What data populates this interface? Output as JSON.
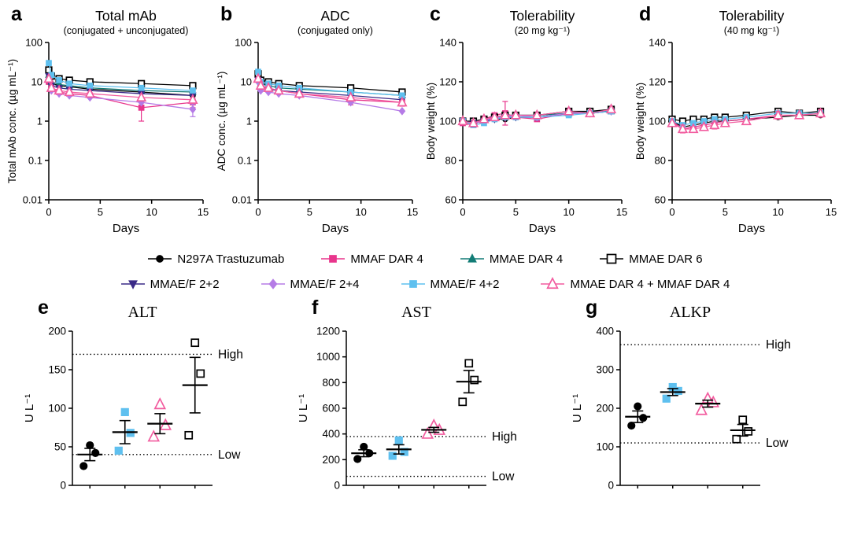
{
  "figure": {
    "background": "#ffffff"
  },
  "legend": {
    "rows": [
      [
        "N297A Trastuzumab",
        "MMAF DAR 4",
        "MMAE DAR 4",
        "MMAE DAR 6"
      ],
      [
        "MMAE/F 2+2",
        "MMAE/F 2+4",
        "MMAE/F 4+2",
        "MMAE DAR 4 + MMAF DAR 4"
      ]
    ]
  },
  "series_styles": {
    "N297A Trastuzumab": {
      "marker": "circle",
      "color": "#000000",
      "filled": true
    },
    "MMAF DAR 4": {
      "marker": "square",
      "color": "#E8358C",
      "filled": true
    },
    "MMAE DAR 4": {
      "marker": "triangle-up",
      "color": "#127C76",
      "filled": true
    },
    "MMAE DAR 6": {
      "marker": "square",
      "color": "#000000",
      "filled": false
    },
    "MMAE/F 2+2": {
      "marker": "triangle-down",
      "color": "#3A2A87",
      "filled": true
    },
    "MMAE/F 2+4": {
      "marker": "diamond",
      "color": "#B57BE6",
      "filled": true
    },
    "MMAE/F 4+2": {
      "marker": "square",
      "color": "#5FC0EF",
      "filled": true
    },
    "MMAE DAR 4 + MMAF DAR 4": {
      "marker": "triangle-up",
      "color": "#F25C9F",
      "filled": false
    }
  },
  "chart_data": [
    {
      "type": "line",
      "panel_letter": "a",
      "title": "Total mAb",
      "subtitle": "(conjugated + unconjugated)",
      "xlabel": "Days",
      "ylabel": "Total mAb conc. (µg mL⁻¹)",
      "xlim": [
        0,
        15
      ],
      "xticks": [
        0,
        5,
        10,
        15
      ],
      "yscale": "log",
      "ylim": [
        0.01,
        100
      ],
      "yticks": [
        0.01,
        0.1,
        1,
        10,
        100
      ],
      "x": [
        0,
        0.25,
        1,
        2,
        4,
        9,
        14
      ],
      "series": [
        {
          "name": "N297A Trastuzumab",
          "values": [
            13,
            9,
            8,
            7.5,
            6.5,
            5.5,
            4.5
          ]
        },
        {
          "name": "MMAF DAR 4",
          "values": [
            10,
            7,
            5.5,
            5,
            4.5,
            2.2,
            3
          ],
          "err": [
            0,
            0,
            0,
            0,
            0,
            1.2,
            0.8
          ]
        },
        {
          "name": "MMAE DAR 4",
          "values": [
            15,
            10,
            8.5,
            8,
            7,
            6,
            5.5
          ]
        },
        {
          "name": "MMAE DAR 6",
          "values": [
            20,
            14,
            12,
            11,
            10,
            9,
            8
          ]
        },
        {
          "name": "MMAE/F 2+2",
          "values": [
            14,
            8,
            7,
            6.5,
            6,
            5,
            4.5
          ]
        },
        {
          "name": "MMAE/F 2+4",
          "values": [
            12,
            6,
            5,
            4.5,
            4,
            3,
            2
          ],
          "err": [
            0,
            0,
            0,
            0,
            0,
            0,
            0.7
          ]
        },
        {
          "name": "MMAE/F 4+2",
          "values": [
            30,
            15,
            11,
            9,
            8,
            7,
            6
          ]
        },
        {
          "name": "MMAE DAR 4 + MMAF DAR 4",
          "values": [
            12,
            7,
            6,
            5.5,
            5,
            4,
            3.5
          ]
        }
      ]
    },
    {
      "type": "line",
      "panel_letter": "b",
      "title": "ADC",
      "subtitle": "(conjugated only)",
      "xlabel": "Days",
      "ylabel": "ADC conc. (µg mL⁻¹)",
      "xlim": [
        0,
        15
      ],
      "xticks": [
        0,
        5,
        10,
        15
      ],
      "yscale": "log",
      "ylim": [
        0.01,
        100
      ],
      "yticks": [
        0.01,
        0.1,
        1,
        10,
        100
      ],
      "x": [
        0,
        0.25,
        1,
        2,
        4,
        9,
        14
      ],
      "series": [
        {
          "name": "MMAF DAR 4",
          "values": [
            12,
            8,
            6.5,
            6,
            5,
            3.5,
            3
          ],
          "err": [
            0,
            0,
            0,
            0,
            0,
            0.9,
            0.6
          ]
        },
        {
          "name": "MMAE DAR 4",
          "values": [
            13,
            9,
            8,
            7,
            6.5,
            5.5,
            4.5
          ]
        },
        {
          "name": "MMAE DAR 6",
          "values": [
            16,
            11,
            10,
            9,
            8,
            7,
            5.5
          ]
        },
        {
          "name": "MMAE/F 2+2",
          "values": [
            11,
            7.5,
            6.5,
            6,
            5.5,
            4.5,
            3.5
          ]
        },
        {
          "name": "MMAE/F 2+4",
          "values": [
            10,
            6,
            5.5,
            5,
            4.5,
            3,
            1.8
          ]
        },
        {
          "name": "MMAE/F 4+2",
          "values": [
            18,
            10,
            9,
            8,
            7,
            5.5,
            4.5
          ]
        },
        {
          "name": "MMAE DAR 4 + MMAF DAR 4",
          "values": [
            12,
            8,
            7,
            6,
            5,
            4,
            3
          ]
        }
      ]
    },
    {
      "type": "line",
      "panel_letter": "c",
      "title": "Tolerability",
      "subtitle": "(20 mg kg⁻¹)",
      "xlabel": "Days",
      "ylabel": "Body weight (%)",
      "xlim": [
        0,
        15
      ],
      "xticks": [
        0,
        5,
        10,
        15
      ],
      "yscale": "linear",
      "ylim": [
        60,
        140
      ],
      "yticks": [
        60,
        80,
        100,
        120,
        140
      ],
      "x": [
        0,
        1,
        2,
        3,
        4,
        5,
        7,
        10,
        12,
        14
      ],
      "series": [
        {
          "name": "N297A Trastuzumab",
          "values": [
            100,
            99,
            100,
            101,
            101,
            102,
            102,
            104,
            104,
            105
          ]
        },
        {
          "name": "MMAF DAR 4",
          "values": [
            99,
            98,
            101,
            103,
            104,
            102,
            101,
            104,
            105,
            105
          ],
          "err": [
            0,
            0,
            0,
            0,
            6,
            0,
            0,
            0,
            0,
            0
          ]
        },
        {
          "name": "MMAE DAR 4",
          "values": [
            100,
            99,
            101,
            102,
            102,
            103,
            103,
            104,
            105,
            105
          ]
        },
        {
          "name": "MMAE DAR 6",
          "values": [
            100,
            100,
            101,
            102,
            103,
            103,
            103,
            105,
            105,
            106
          ]
        },
        {
          "name": "MMAE/F 2+2",
          "values": [
            100,
            99,
            100,
            101,
            102,
            102,
            102,
            104,
            104,
            105
          ]
        },
        {
          "name": "MMAE/F 2+4",
          "values": [
            100,
            99,
            100,
            102,
            102,
            103,
            102,
            104,
            104,
            105
          ]
        },
        {
          "name": "MMAE/F 4+2",
          "values": [
            100,
            98,
            99,
            101,
            102,
            102,
            102,
            103,
            104,
            105
          ]
        },
        {
          "name": "MMAE DAR 4 + MMAF DAR 4",
          "values": [
            100,
            99,
            101,
            102,
            103,
            103,
            103,
            105,
            104,
            106
          ]
        }
      ]
    },
    {
      "type": "line",
      "panel_letter": "d",
      "title": "Tolerability",
      "subtitle": "(40 mg kg⁻¹)",
      "xlabel": "Days",
      "ylabel": "Body weight (%)",
      "xlim": [
        0,
        15
      ],
      "xticks": [
        0,
        5,
        10,
        15
      ],
      "yscale": "linear",
      "ylim": [
        60,
        140
      ],
      "yticks": [
        60,
        80,
        100,
        120,
        140
      ],
      "x": [
        0,
        1,
        2,
        3,
        4,
        5,
        7,
        10,
        12,
        14
      ],
      "series": [
        {
          "name": "N297A Trastuzumab",
          "values": [
            100,
            97,
            98,
            99,
            100,
            100,
            101,
            102,
            103,
            103
          ]
        },
        {
          "name": "MMAF DAR 4",
          "values": [
            100,
            96,
            97,
            98,
            99,
            100,
            101,
            103,
            103,
            104
          ]
        },
        {
          "name": "MMAE DAR 6",
          "values": [
            101,
            100,
            101,
            101,
            102,
            102,
            103,
            105,
            104,
            105
          ]
        },
        {
          "name": "MMAE/F 4+2",
          "values": [
            100,
            98,
            99,
            100,
            101,
            101,
            102,
            104,
            104,
            104
          ]
        },
        {
          "name": "MMAE DAR 4 + MMAF DAR 4",
          "values": [
            99,
            96,
            96,
            97,
            98,
            99,
            100,
            103,
            103,
            104
          ],
          "err": [
            0,
            2,
            0,
            0,
            2,
            0,
            0,
            2,
            0,
            2
          ]
        }
      ]
    },
    {
      "type": "scatter",
      "panel_letter": "e",
      "title": "ALT",
      "ylabel": "U L⁻¹",
      "ylim": [
        0,
        200
      ],
      "yticks": [
        0,
        50,
        100,
        150,
        200
      ],
      "high": 170,
      "low": 40,
      "high_label": "High",
      "low_label": "Low",
      "groups": [
        {
          "series": "N297A Trastuzumab",
          "points": [
            25,
            42,
            52
          ],
          "mean": 40,
          "sem": 8
        },
        {
          "series": "MMAE/F 4+2",
          "points": [
            45,
            68,
            95
          ],
          "mean": 69,
          "sem": 15
        },
        {
          "series": "MMAE DAR 4 + MMAF DAR 4",
          "points": [
            63,
            78,
            105
          ],
          "mean": 80,
          "sem": 13
        },
        {
          "series": "MMAE DAR 6",
          "points": [
            65,
            145,
            185
          ],
          "mean": 130,
          "sem": 36
        }
      ]
    },
    {
      "type": "scatter",
      "panel_letter": "f",
      "title": "AST",
      "ylabel": "U L⁻¹",
      "ylim": [
        0,
        1200
      ],
      "yticks": [
        0,
        200,
        400,
        600,
        800,
        1000,
        1200
      ],
      "high": 380,
      "low": 70,
      "high_label": "High",
      "low_label": "Low",
      "groups": [
        {
          "series": "N297A Trastuzumab",
          "points": [
            205,
            250,
            300
          ],
          "mean": 250,
          "sem": 27
        },
        {
          "series": "MMAE/F 4+2",
          "points": [
            230,
            260,
            350
          ],
          "mean": 280,
          "sem": 36
        },
        {
          "series": "MMAE DAR 4 + MMAF DAR 4",
          "points": [
            400,
            430,
            465
          ],
          "mean": 432,
          "sem": 19
        },
        {
          "series": "MMAE DAR 6",
          "points": [
            650,
            820,
            950
          ],
          "mean": 807,
          "sem": 87
        }
      ]
    },
    {
      "type": "scatter",
      "panel_letter": "g",
      "title": "ALKP",
      "ylabel": "U L⁻¹",
      "ylim": [
        0,
        400
      ],
      "yticks": [
        0,
        100,
        200,
        300,
        400
      ],
      "high": 365,
      "low": 110,
      "high_label": "High",
      "low_label": "Low",
      "groups": [
        {
          "series": "N297A Trastuzumab",
          "points": [
            155,
            175,
            205
          ],
          "mean": 178,
          "sem": 15
        },
        {
          "series": "MMAE/F 4+2",
          "points": [
            225,
            245,
            255
          ],
          "mean": 242,
          "sem": 9
        },
        {
          "series": "MMAE DAR 4 + MMAF DAR 4",
          "points": [
            195,
            215,
            225
          ],
          "mean": 212,
          "sem": 9
        },
        {
          "series": "MMAE DAR 6",
          "points": [
            120,
            140,
            170
          ],
          "mean": 143,
          "sem": 15
        }
      ]
    }
  ]
}
